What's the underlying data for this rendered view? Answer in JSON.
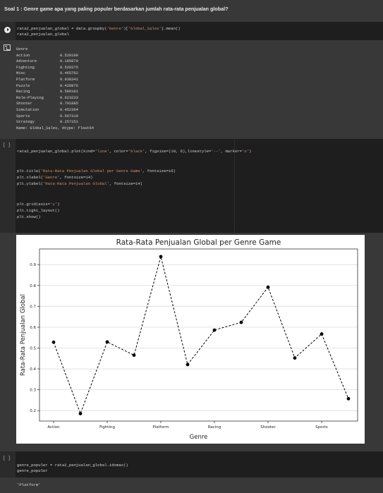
{
  "question": "Soal 1 : Genre game apa yang paling populer berdasarkan jumlah rata-rata penjualan global?",
  "cell1": {
    "line1_a": "rata2_penjualan_global = data.groupby(",
    "line1_s1": "'Genre'",
    "line1_b": ")[",
    "line1_s2": "'Global_Sales'",
    "line1_c": "].mean()",
    "line2": "rata2_penjualan_global"
  },
  "output1": {
    "header": "Genre",
    "rows": [
      {
        "genre": "Action",
        "value": "0.528100"
      },
      {
        "genre": "Adventure",
        "value": "0.185879"
      },
      {
        "genre": "Fighting",
        "value": "0.529375"
      },
      {
        "genre": "Misc",
        "value": "0.465762"
      },
      {
        "genre": "Platform",
        "value": "0.938341"
      },
      {
        "genre": "Puzzle",
        "value": "0.420876"
      },
      {
        "genre": "Racing",
        "value": "0.586101"
      },
      {
        "genre": "Role-Playing",
        "value": "0.623233"
      },
      {
        "genre": "Shooter",
        "value": "0.791885"
      },
      {
        "genre": "Simulation",
        "value": "0.452364"
      },
      {
        "genre": "Sports",
        "value": "0.567319"
      },
      {
        "genre": "Strategy",
        "value": "0.257151"
      }
    ],
    "footer": "Name: Global_Sales, dtype: float64"
  },
  "cell2": {
    "bracket": "[ ]",
    "plot_a": "rata2_penjualan_global.plot(kind=",
    "plot_s1": "'line'",
    "plot_b": ", color=",
    "plot_s2": "'black'",
    "plot_c": ", figsize=(10, 6),linestyle=",
    "plot_s3": "'--'",
    "plot_d": ", marker=",
    "plot_s4": "'o'",
    "plot_e": ")",
    "title_a": "plt.title(",
    "title_s": "'Rata-Rata Penjualan Global per Genre Game'",
    "title_b": ", fontsize=16)",
    "xlabel_a": "plt.xlabel(",
    "xlabel_s": "'Genre'",
    "xlabel_b": ", fontsize=14)",
    "ylabel_a": "plt.ylabel(",
    "ylabel_s": "'Rata-Rata Penjualan Global'",
    "ylabel_b": ", fontsize=14)",
    "grid_a": "plt.grid(axis=",
    "grid_s": "'y'",
    "grid_b": ")",
    "tight": "plt.tight_layout()",
    "show": "plt.show()"
  },
  "chart_data": {
    "type": "line",
    "title": "Rata-Rata Penjualan Global per Genre Game",
    "xlabel": "Genre",
    "ylabel": "Rata-Rata Penjualan Global",
    "categories": [
      "Action",
      "Adventure",
      "Fighting",
      "Misc",
      "Platform",
      "Puzzle",
      "Racing",
      "Role-Playing",
      "Shooter",
      "Simulation",
      "Sports",
      "Strategy"
    ],
    "x_tick_labels": [
      "Action",
      "Fighting",
      "Platform",
      "Racing",
      "Shooter",
      "Sports"
    ],
    "values": [
      0.5281,
      0.185879,
      0.529375,
      0.465762,
      0.938341,
      0.420876,
      0.586101,
      0.623233,
      0.791885,
      0.452364,
      0.567319,
      0.257151
    ],
    "y_ticks": [
      0.2,
      0.3,
      0.4,
      0.5,
      0.6,
      0.7,
      0.8,
      0.9
    ],
    "ylim": [
      0.15,
      0.975
    ],
    "line_color": "#000000",
    "line_style": "dashed",
    "marker": "circle",
    "grid": "y-axis only"
  },
  "cell3": {
    "bracket": "[ ]",
    "line1": "genre_populer = rata2_penjualan_global.idxmax()",
    "line2": "genre_populer"
  },
  "output3": {
    "value": "'Platform'"
  }
}
